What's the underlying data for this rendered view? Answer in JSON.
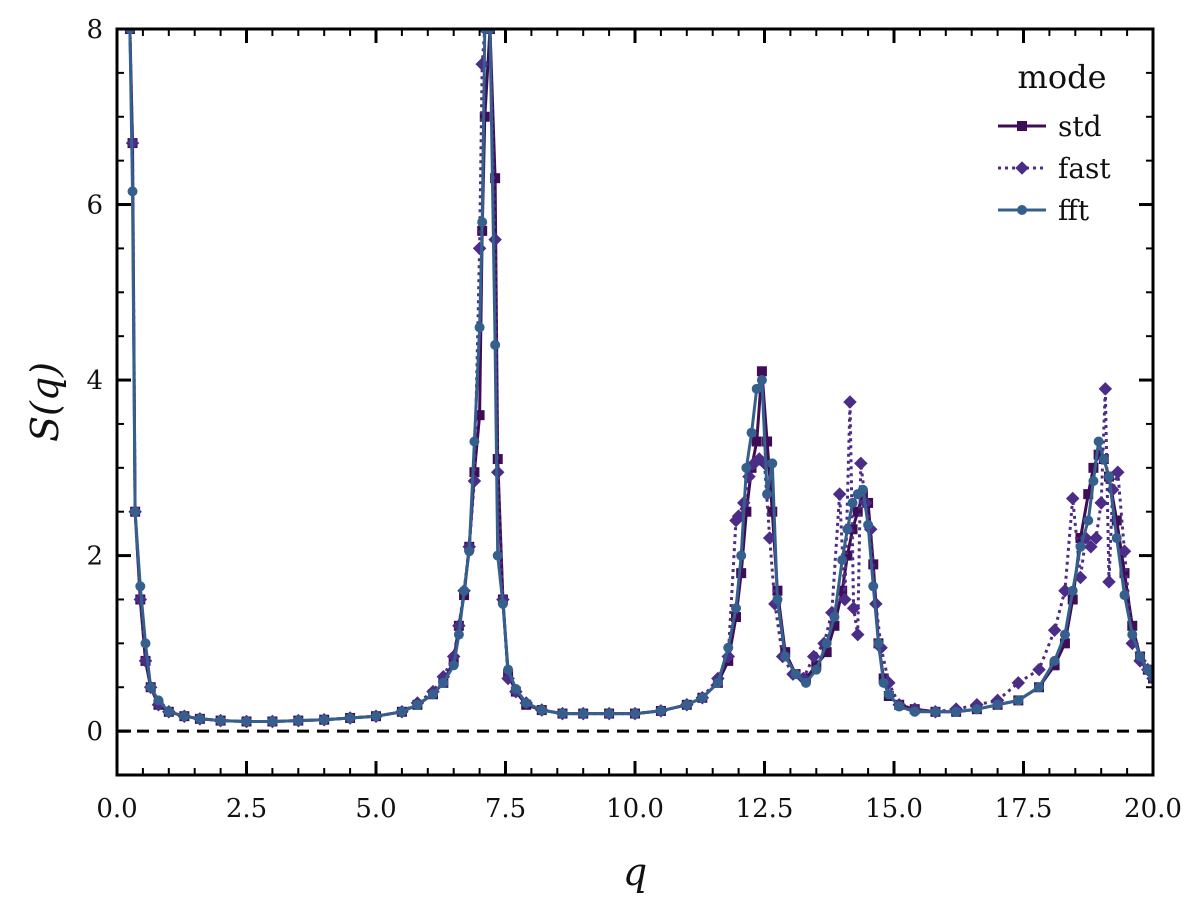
{
  "chart_data": {
    "type": "line",
    "title": "",
    "xlabel": "q",
    "ylabel": "S(q)",
    "xlim": [
      0,
      20
    ],
    "ylim": [
      -0.5,
      8
    ],
    "xticks": [
      "0.0",
      "2.5",
      "5.0",
      "7.5",
      "10.0",
      "12.5",
      "15.0",
      "17.5",
      "20.0"
    ],
    "yticks": [
      "0",
      "2",
      "4",
      "6",
      "8"
    ],
    "grid": false,
    "reference_line": {
      "y": 0,
      "style": "dashed",
      "color": "#000000"
    },
    "legend": {
      "title": "mode",
      "placement": "top-right"
    },
    "series": [
      {
        "name": "std",
        "color": "#3f0d56",
        "linestyle": "solid",
        "marker": "square",
        "x": [
          0.25,
          0.3,
          0.35,
          0.45,
          0.55,
          0.65,
          0.8,
          1.0,
          1.3,
          1.6,
          2.0,
          2.5,
          3.0,
          3.5,
          4.0,
          4.5,
          5.0,
          5.5,
          5.8,
          6.1,
          6.3,
          6.5,
          6.6,
          6.7,
          6.8,
          6.9,
          7.0,
          7.05,
          7.1,
          7.2,
          7.3,
          7.35,
          7.45,
          7.55,
          7.7,
          7.9,
          8.2,
          8.6,
          9.0,
          9.5,
          10.0,
          10.5,
          11.0,
          11.3,
          11.6,
          11.8,
          11.95,
          12.05,
          12.15,
          12.25,
          12.35,
          12.45,
          12.55,
          12.65,
          12.75,
          12.9,
          13.1,
          13.3,
          13.5,
          13.7,
          13.85,
          14.0,
          14.1,
          14.2,
          14.3,
          14.4,
          14.5,
          14.6,
          14.7,
          14.8,
          14.9,
          15.1,
          15.4,
          15.8,
          16.2,
          16.6,
          17.0,
          17.4,
          17.8,
          18.1,
          18.3,
          18.45,
          18.6,
          18.75,
          18.85,
          18.95,
          19.05,
          19.15,
          19.3,
          19.45,
          19.6,
          19.75,
          19.9,
          20.0
        ],
        "y": [
          8.0,
          6.7,
          2.5,
          1.5,
          0.8,
          0.5,
          0.3,
          0.22,
          0.17,
          0.14,
          0.12,
          0.11,
          0.11,
          0.12,
          0.13,
          0.15,
          0.17,
          0.22,
          0.3,
          0.42,
          0.55,
          0.8,
          1.2,
          1.55,
          2.1,
          2.95,
          3.6,
          5.7,
          7.0,
          8.0,
          6.3,
          3.1,
          1.5,
          0.65,
          0.45,
          0.3,
          0.24,
          0.2,
          0.2,
          0.2,
          0.2,
          0.23,
          0.3,
          0.38,
          0.55,
          0.8,
          1.3,
          1.8,
          2.5,
          3.0,
          3.3,
          4.1,
          3.3,
          2.5,
          1.6,
          0.9,
          0.65,
          0.6,
          0.75,
          0.9,
          1.2,
          1.6,
          2.0,
          2.3,
          2.5,
          2.7,
          2.6,
          1.9,
          1.0,
          0.6,
          0.4,
          0.3,
          0.25,
          0.22,
          0.22,
          0.25,
          0.3,
          0.35,
          0.5,
          0.75,
          1.0,
          1.5,
          2.2,
          2.7,
          3.0,
          3.15,
          3.1,
          2.9,
          2.4,
          1.8,
          1.2,
          0.85,
          0.7,
          0.6
        ]
      },
      {
        "name": "fast",
        "color": "#4b2c86",
        "linestyle": "dotted",
        "marker": "diamond",
        "x": [
          0.25,
          0.3,
          0.35,
          0.45,
          0.55,
          0.65,
          0.8,
          1.0,
          1.3,
          1.6,
          2.0,
          2.5,
          3.0,
          3.5,
          4.0,
          4.5,
          5.0,
          5.5,
          5.8,
          6.1,
          6.3,
          6.5,
          6.6,
          6.7,
          6.8,
          6.9,
          7.0,
          7.05,
          7.1,
          7.2,
          7.3,
          7.35,
          7.45,
          7.55,
          7.7,
          7.9,
          8.2,
          8.6,
          9.0,
          9.5,
          10.0,
          10.5,
          11.0,
          11.3,
          11.6,
          11.8,
          11.95,
          12.0,
          12.1,
          12.2,
          12.3,
          12.4,
          12.5,
          12.6,
          12.7,
          12.85,
          13.05,
          13.25,
          13.45,
          13.65,
          13.8,
          13.95,
          14.05,
          14.15,
          14.22,
          14.3,
          14.36,
          14.45,
          14.55,
          14.65,
          14.75,
          14.9,
          15.1,
          15.4,
          15.8,
          16.2,
          16.6,
          17.0,
          17.4,
          17.8,
          18.1,
          18.3,
          18.45,
          18.6,
          18.7,
          18.8,
          18.9,
          19.0,
          19.08,
          19.15,
          19.22,
          19.32,
          19.45,
          19.6,
          19.75,
          19.9,
          20.0
        ],
        "y": [
          8.0,
          6.7,
          2.5,
          1.5,
          0.8,
          0.5,
          0.3,
          0.22,
          0.17,
          0.14,
          0.12,
          0.11,
          0.11,
          0.12,
          0.13,
          0.15,
          0.17,
          0.22,
          0.32,
          0.45,
          0.62,
          0.85,
          1.2,
          1.6,
          2.1,
          2.85,
          5.5,
          7.6,
          8.0,
          8.0,
          5.6,
          2.95,
          1.5,
          0.6,
          0.45,
          0.32,
          0.24,
          0.2,
          0.2,
          0.2,
          0.2,
          0.23,
          0.3,
          0.38,
          0.6,
          0.85,
          2.4,
          2.45,
          2.6,
          2.9,
          3.05,
          3.1,
          3.05,
          2.2,
          1.45,
          0.85,
          0.65,
          0.6,
          0.85,
          1.0,
          1.35,
          2.7,
          1.5,
          3.75,
          1.4,
          1.1,
          3.05,
          2.6,
          2.3,
          1.45,
          0.95,
          0.55,
          0.3,
          0.25,
          0.22,
          0.25,
          0.3,
          0.35,
          0.55,
          0.7,
          1.15,
          1.6,
          2.65,
          1.75,
          2.2,
          2.1,
          2.2,
          2.6,
          3.9,
          1.7,
          2.75,
          2.95,
          2.05,
          1.0,
          0.8,
          0.7,
          0.6
        ]
      },
      {
        "name": "fft",
        "color": "#35608d",
        "linestyle": "solid",
        "marker": "circle",
        "x": [
          0.25,
          0.3,
          0.35,
          0.45,
          0.55,
          0.65,
          0.8,
          1.0,
          1.3,
          1.6,
          2.0,
          2.5,
          3.0,
          3.5,
          4.0,
          4.5,
          5.0,
          5.5,
          5.8,
          6.1,
          6.3,
          6.5,
          6.6,
          6.7,
          6.8,
          6.9,
          7.0,
          7.05,
          7.1,
          7.2,
          7.3,
          7.35,
          7.45,
          7.55,
          7.7,
          7.9,
          8.2,
          8.6,
          9.0,
          9.5,
          10.0,
          10.5,
          11.0,
          11.3,
          11.6,
          11.8,
          11.95,
          12.05,
          12.15,
          12.25,
          12.35,
          12.45,
          12.55,
          12.65,
          12.75,
          12.9,
          13.1,
          13.3,
          13.5,
          13.7,
          13.85,
          14.0,
          14.1,
          14.2,
          14.3,
          14.4,
          14.5,
          14.6,
          14.7,
          14.8,
          14.9,
          15.1,
          15.4,
          15.8,
          16.2,
          16.6,
          17.0,
          17.4,
          17.8,
          18.1,
          18.3,
          18.45,
          18.6,
          18.75,
          18.85,
          18.95,
          19.05,
          19.15,
          19.3,
          19.45,
          19.6,
          19.75,
          19.9,
          20.0
        ],
        "y": [
          8.0,
          6.15,
          2.5,
          1.65,
          1.0,
          0.5,
          0.35,
          0.22,
          0.17,
          0.14,
          0.12,
          0.11,
          0.11,
          0.12,
          0.13,
          0.15,
          0.17,
          0.22,
          0.3,
          0.42,
          0.55,
          0.75,
          1.1,
          1.6,
          2.05,
          3.3,
          4.6,
          5.8,
          8.0,
          8.0,
          4.4,
          2.0,
          1.45,
          0.7,
          0.48,
          0.32,
          0.24,
          0.2,
          0.2,
          0.2,
          0.2,
          0.23,
          0.3,
          0.38,
          0.55,
          0.95,
          1.4,
          2.0,
          3.0,
          3.4,
          3.9,
          4.0,
          2.7,
          3.05,
          1.5,
          0.85,
          0.65,
          0.55,
          0.7,
          1.0,
          1.3,
          1.95,
          2.3,
          2.6,
          2.7,
          2.75,
          2.35,
          1.65,
          1.0,
          0.55,
          0.42,
          0.28,
          0.22,
          0.22,
          0.22,
          0.25,
          0.3,
          0.35,
          0.5,
          0.8,
          1.1,
          1.6,
          2.1,
          2.4,
          2.85,
          3.3,
          3.1,
          2.9,
          2.2,
          1.55,
          1.1,
          0.85,
          0.7,
          0.62
        ]
      }
    ]
  }
}
